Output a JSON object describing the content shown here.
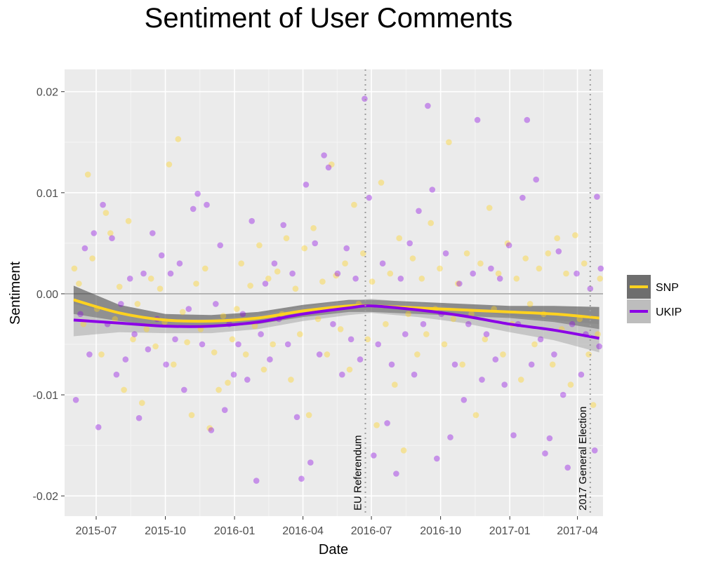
{
  "chart_data": {
    "type": "scatter",
    "title": "Sentiment of User Comments",
    "xlabel": "Date",
    "ylabel": "Sentiment",
    "xlim": [
      "2015-05-20",
      "2017-05-05"
    ],
    "ylim": [
      -0.022,
      0.0222
    ],
    "x_ticks": [
      "2015-07",
      "2015-10",
      "2016-01",
      "2016-04",
      "2016-07",
      "2016-10",
      "2017-01",
      "2017-04"
    ],
    "y_ticks": [
      0.02,
      0.01,
      0.0,
      -0.01,
      -0.02
    ],
    "y_tick_labels": [
      "0.02",
      "0.01",
      "0.00",
      "-0.01",
      "-0.02"
    ],
    "grid": true,
    "legend_position": "right",
    "horizontal_reference_line": 0.0,
    "annotations": [
      {
        "date": "2016-06-23",
        "label": "EU Referendum"
      },
      {
        "date": "2017-04-18",
        "label": "2017 General Election"
      }
    ],
    "series": [
      {
        "name": "SNP",
        "color": "#FFD21F",
        "smooth": {
          "x": [
            "2015-06-01",
            "2015-08-01",
            "2015-10-01",
            "2015-12-01",
            "2016-02-01",
            "2016-04-01",
            "2016-06-01",
            "2016-07-01",
            "2016-09-01",
            "2016-11-01",
            "2017-01-01",
            "2017-03-01",
            "2017-04-30"
          ],
          "y": [
            -0.0006,
            -0.0019,
            -0.0026,
            -0.0027,
            -0.0024,
            -0.0017,
            -0.0012,
            -0.0012,
            -0.0014,
            -0.0016,
            -0.0018,
            -0.002,
            -0.0024
          ],
          "se": [
            0.0014,
            0.0008,
            0.0006,
            0.0006,
            0.0006,
            0.0006,
            0.0006,
            0.0006,
            0.0006,
            0.0006,
            0.0006,
            0.0008,
            0.0011
          ]
        },
        "points": [
          [
            "2015-06-02",
            0.0025
          ],
          [
            "2015-06-08",
            0.001
          ],
          [
            "2015-06-14",
            -0.003
          ],
          [
            "2015-06-20",
            0.0118
          ],
          [
            "2015-06-26",
            0.0035
          ],
          [
            "2015-07-02",
            -0.0015
          ],
          [
            "2015-07-08",
            -0.006
          ],
          [
            "2015-07-14",
            0.008
          ],
          [
            "2015-07-20",
            0.006
          ],
          [
            "2015-07-26",
            -0.0025
          ],
          [
            "2015-08-01",
            0.0007
          ],
          [
            "2015-08-07",
            -0.0095
          ],
          [
            "2015-08-13",
            0.0072
          ],
          [
            "2015-08-19",
            -0.0045
          ],
          [
            "2015-08-25",
            -0.001
          ],
          [
            "2015-08-31",
            -0.0108
          ],
          [
            "2015-09-06",
            -0.0035
          ],
          [
            "2015-09-12",
            0.0015
          ],
          [
            "2015-09-18",
            -0.0052
          ],
          [
            "2015-09-24",
            0.0005
          ],
          [
            "2015-09-30",
            -0.0028
          ],
          [
            "2015-10-06",
            0.0128
          ],
          [
            "2015-10-12",
            -0.007
          ],
          [
            "2015-10-18",
            0.0153
          ],
          [
            "2015-10-24",
            -0.0018
          ],
          [
            "2015-10-30",
            -0.0048
          ],
          [
            "2015-11-05",
            -0.012
          ],
          [
            "2015-11-11",
            0.001
          ],
          [
            "2015-11-17",
            -0.0035
          ],
          [
            "2015-11-23",
            0.0025
          ],
          [
            "2015-11-29",
            -0.0133
          ],
          [
            "2015-12-05",
            -0.0058
          ],
          [
            "2015-12-11",
            -0.0095
          ],
          [
            "2015-12-17",
            -0.0022
          ],
          [
            "2015-12-23",
            -0.0088
          ],
          [
            "2015-12-29",
            -0.0045
          ],
          [
            "2016-01-04",
            -0.0015
          ],
          [
            "2016-01-10",
            0.003
          ],
          [
            "2016-01-16",
            -0.006
          ],
          [
            "2016-01-22",
            0.0008
          ],
          [
            "2016-01-28",
            -0.0032
          ],
          [
            "2016-02-03",
            0.0048
          ],
          [
            "2016-02-09",
            -0.0075
          ],
          [
            "2016-02-15",
            0.0015
          ],
          [
            "2016-02-21",
            -0.005
          ],
          [
            "2016-02-27",
            0.0022
          ],
          [
            "2016-03-04",
            -0.002
          ],
          [
            "2016-03-10",
            0.0055
          ],
          [
            "2016-03-16",
            -0.0085
          ],
          [
            "2016-03-22",
            0.0005
          ],
          [
            "2016-03-28",
            -0.004
          ],
          [
            "2016-04-03",
            0.0045
          ],
          [
            "2016-04-09",
            -0.012
          ],
          [
            "2016-04-15",
            0.0065
          ],
          [
            "2016-04-21",
            -0.0025
          ],
          [
            "2016-04-27",
            0.0012
          ],
          [
            "2016-05-03",
            -0.006
          ],
          [
            "2016-05-09",
            0.0128
          ],
          [
            "2016-05-15",
            0.0018
          ],
          [
            "2016-05-21",
            -0.0035
          ],
          [
            "2016-05-27",
            0.003
          ],
          [
            "2016-06-02",
            -0.0075
          ],
          [
            "2016-06-08",
            0.0088
          ],
          [
            "2016-06-14",
            -0.001
          ],
          [
            "2016-06-20",
            0.004
          ],
          [
            "2016-06-26",
            -0.0045
          ],
          [
            "2016-07-02",
            0.0012
          ],
          [
            "2016-07-08",
            -0.013
          ],
          [
            "2016-07-14",
            0.011
          ],
          [
            "2016-07-20",
            -0.003
          ],
          [
            "2016-07-26",
            0.002
          ],
          [
            "2016-08-01",
            -0.009
          ],
          [
            "2016-08-07",
            0.0055
          ],
          [
            "2016-08-13",
            -0.0155
          ],
          [
            "2016-08-19",
            -0.002
          ],
          [
            "2016-08-25",
            0.0035
          ],
          [
            "2016-08-31",
            -0.006
          ],
          [
            "2016-09-06",
            0.0015
          ],
          [
            "2016-09-12",
            -0.004
          ],
          [
            "2016-09-18",
            0.007
          ],
          [
            "2016-09-24",
            -0.0015
          ],
          [
            "2016-09-30",
            0.0025
          ],
          [
            "2016-10-06",
            -0.005
          ],
          [
            "2016-10-12",
            0.015
          ],
          [
            "2016-10-18",
            -0.0025
          ],
          [
            "2016-10-24",
            0.001
          ],
          [
            "2016-10-30",
            -0.007
          ],
          [
            "2016-11-05",
            0.004
          ],
          [
            "2016-11-11",
            -0.002
          ],
          [
            "2016-11-17",
            -0.012
          ],
          [
            "2016-11-23",
            0.003
          ],
          [
            "2016-11-29",
            -0.0045
          ],
          [
            "2016-12-05",
            0.0085
          ],
          [
            "2016-12-11",
            -0.0015
          ],
          [
            "2016-12-17",
            0.002
          ],
          [
            "2016-12-23",
            -0.006
          ],
          [
            "2016-12-29",
            0.005
          ],
          [
            "2017-01-04",
            -0.003
          ],
          [
            "2017-01-10",
            0.0015
          ],
          [
            "2017-01-16",
            -0.0085
          ],
          [
            "2017-01-22",
            0.0035
          ],
          [
            "2017-01-28",
            -0.001
          ],
          [
            "2017-02-03",
            -0.005
          ],
          [
            "2017-02-09",
            0.0025
          ],
          [
            "2017-02-15",
            -0.002
          ],
          [
            "2017-02-21",
            0.004
          ],
          [
            "2017-02-27",
            -0.007
          ],
          [
            "2017-03-05",
            0.0055
          ],
          [
            "2017-03-11",
            -0.0035
          ],
          [
            "2017-03-17",
            0.002
          ],
          [
            "2017-03-23",
            -0.009
          ],
          [
            "2017-03-29",
            0.0058
          ],
          [
            "2017-04-04",
            -0.0025
          ],
          [
            "2017-04-10",
            0.003
          ],
          [
            "2017-04-16",
            -0.006
          ],
          [
            "2017-04-22",
            -0.011
          ],
          [
            "2017-04-28",
            -0.004
          ],
          [
            "2017-05-01",
            0.0015
          ]
        ]
      },
      {
        "name": "UKIP",
        "color": "#8B00E6",
        "smooth": {
          "x": [
            "2015-06-01",
            "2015-08-01",
            "2015-10-01",
            "2015-12-01",
            "2016-02-01",
            "2016-04-01",
            "2016-06-01",
            "2016-07-01",
            "2016-09-01",
            "2016-11-01",
            "2017-01-01",
            "2017-03-01",
            "2017-04-30"
          ],
          "y": [
            -0.0026,
            -0.0029,
            -0.0032,
            -0.0032,
            -0.0028,
            -0.002,
            -0.0014,
            -0.0012,
            -0.0016,
            -0.0022,
            -0.003,
            -0.0036,
            -0.0044
          ],
          "se": [
            0.0016,
            0.0009,
            0.0007,
            0.0007,
            0.0007,
            0.0007,
            0.0007,
            0.0007,
            0.0007,
            0.0007,
            0.0008,
            0.001,
            0.0014
          ]
        },
        "points": [
          [
            "2015-06-04",
            -0.0105
          ],
          [
            "2015-06-10",
            -0.002
          ],
          [
            "2015-06-16",
            0.0045
          ],
          [
            "2015-06-22",
            -0.006
          ],
          [
            "2015-06-28",
            0.006
          ],
          [
            "2015-07-04",
            -0.0132
          ],
          [
            "2015-07-10",
            0.0088
          ],
          [
            "2015-07-16",
            -0.003
          ],
          [
            "2015-07-22",
            0.0055
          ],
          [
            "2015-07-28",
            -0.008
          ],
          [
            "2015-08-03",
            -0.001
          ],
          [
            "2015-08-09",
            -0.0065
          ],
          [
            "2015-08-15",
            0.0015
          ],
          [
            "2015-08-21",
            -0.004
          ],
          [
            "2015-08-27",
            -0.0123
          ],
          [
            "2015-09-02",
            0.002
          ],
          [
            "2015-09-08",
            -0.0055
          ],
          [
            "2015-09-14",
            0.006
          ],
          [
            "2015-09-20",
            -0.0025
          ],
          [
            "2015-09-26",
            0.0038
          ],
          [
            "2015-10-02",
            -0.007
          ],
          [
            "2015-10-08",
            0.002
          ],
          [
            "2015-10-14",
            -0.0045
          ],
          [
            "2015-10-20",
            0.003
          ],
          [
            "2015-10-26",
            -0.0095
          ],
          [
            "2015-11-01",
            -0.0015
          ],
          [
            "2015-11-07",
            0.0084
          ],
          [
            "2015-11-13",
            0.0099
          ],
          [
            "2015-11-19",
            -0.005
          ],
          [
            "2015-11-25",
            0.0088
          ],
          [
            "2015-12-01",
            -0.0135
          ],
          [
            "2015-12-07",
            -0.001
          ],
          [
            "2015-12-13",
            0.0048
          ],
          [
            "2015-12-19",
            -0.0115
          ],
          [
            "2015-12-25",
            -0.003
          ],
          [
            "2015-12-31",
            -0.008
          ],
          [
            "2016-01-06",
            -0.005
          ],
          [
            "2016-01-12",
            -0.002
          ],
          [
            "2016-01-18",
            -0.0085
          ],
          [
            "2016-01-24",
            0.0072
          ],
          [
            "2016-01-30",
            -0.0185
          ],
          [
            "2016-02-05",
            -0.004
          ],
          [
            "2016-02-11",
            0.001
          ],
          [
            "2016-02-17",
            -0.0065
          ],
          [
            "2016-02-23",
            0.003
          ],
          [
            "2016-02-29",
            -0.0025
          ],
          [
            "2016-03-06",
            0.0068
          ],
          [
            "2016-03-12",
            -0.005
          ],
          [
            "2016-03-18",
            0.002
          ],
          [
            "2016-03-24",
            -0.0122
          ],
          [
            "2016-03-30",
            -0.0183
          ],
          [
            "2016-04-05",
            0.0108
          ],
          [
            "2016-04-11",
            -0.0167
          ],
          [
            "2016-04-17",
            0.005
          ],
          [
            "2016-04-23",
            -0.006
          ],
          [
            "2016-04-29",
            0.0137
          ],
          [
            "2016-05-05",
            0.0125
          ],
          [
            "2016-05-11",
            -0.003
          ],
          [
            "2016-05-17",
            0.002
          ],
          [
            "2016-05-23",
            -0.008
          ],
          [
            "2016-05-29",
            0.0045
          ],
          [
            "2016-06-04",
            -0.0045
          ],
          [
            "2016-06-10",
            0.0015
          ],
          [
            "2016-06-16",
            -0.0065
          ],
          [
            "2016-06-22",
            0.0193
          ],
          [
            "2016-06-28",
            0.0095
          ],
          [
            "2016-07-04",
            -0.016
          ],
          [
            "2016-07-10",
            -0.005
          ],
          [
            "2016-07-16",
            0.003
          ],
          [
            "2016-07-22",
            -0.0128
          ],
          [
            "2016-07-28",
            -0.007
          ],
          [
            "2016-08-03",
            -0.0178
          ],
          [
            "2016-08-09",
            0.0015
          ],
          [
            "2016-08-15",
            -0.004
          ],
          [
            "2016-08-21",
            0.005
          ],
          [
            "2016-08-27",
            -0.008
          ],
          [
            "2016-09-02",
            0.0082
          ],
          [
            "2016-09-08",
            -0.003
          ],
          [
            "2016-09-14",
            0.0186
          ],
          [
            "2016-09-20",
            0.0103
          ],
          [
            "2016-09-26",
            -0.0163
          ],
          [
            "2016-10-02",
            -0.002
          ],
          [
            "2016-10-08",
            0.004
          ],
          [
            "2016-10-14",
            -0.0142
          ],
          [
            "2016-10-20",
            -0.007
          ],
          [
            "2016-10-26",
            0.001
          ],
          [
            "2016-11-01",
            -0.0105
          ],
          [
            "2016-11-07",
            -0.003
          ],
          [
            "2016-11-13",
            0.002
          ],
          [
            "2016-11-19",
            0.0172
          ],
          [
            "2016-11-25",
            -0.0085
          ],
          [
            "2016-12-01",
            -0.004
          ],
          [
            "2016-12-07",
            0.0025
          ],
          [
            "2016-12-13",
            -0.0065
          ],
          [
            "2016-12-19",
            0.0015
          ],
          [
            "2016-12-25",
            -0.009
          ],
          [
            "2016-12-31",
            0.0048
          ],
          [
            "2017-01-06",
            -0.014
          ],
          [
            "2017-01-12",
            -0.003
          ],
          [
            "2017-01-18",
            0.0095
          ],
          [
            "2017-01-24",
            0.0172
          ],
          [
            "2017-01-30",
            -0.007
          ],
          [
            "2017-02-05",
            0.0113
          ],
          [
            "2017-02-11",
            -0.0045
          ],
          [
            "2017-02-17",
            -0.0158
          ],
          [
            "2017-02-23",
            -0.0143
          ],
          [
            "2017-03-01",
            -0.006
          ],
          [
            "2017-03-07",
            0.0042
          ],
          [
            "2017-03-13",
            -0.01
          ],
          [
            "2017-03-19",
            -0.0172
          ],
          [
            "2017-03-25",
            -0.003
          ],
          [
            "2017-03-31",
            0.002
          ],
          [
            "2017-04-06",
            -0.008
          ],
          [
            "2017-04-12",
            -0.004
          ],
          [
            "2017-04-18",
            0.0005
          ],
          [
            "2017-04-24",
            -0.0155
          ],
          [
            "2017-04-27",
            0.0096
          ],
          [
            "2017-04-30",
            -0.0052
          ],
          [
            "2017-05-02",
            0.0025
          ]
        ]
      }
    ]
  }
}
